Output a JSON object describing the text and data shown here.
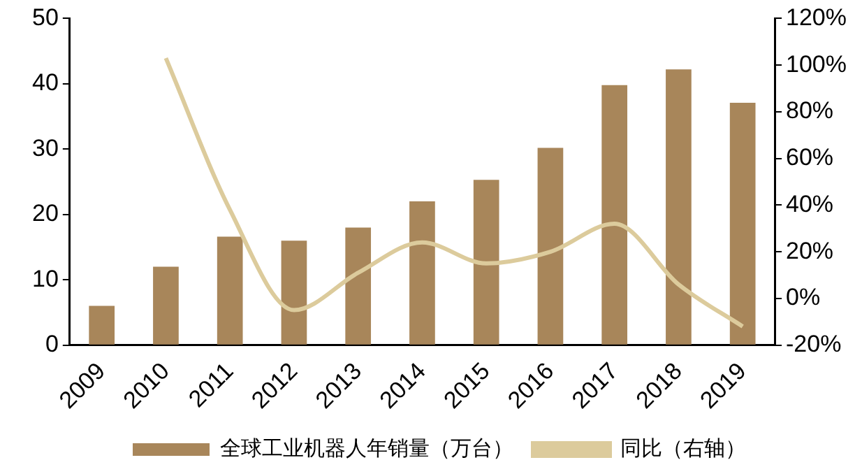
{
  "chart_data": {
    "type": "bar",
    "categories": [
      "2009",
      "2010",
      "2011",
      "2012",
      "2013",
      "2014",
      "2015",
      "2016",
      "2017",
      "2018",
      "2019"
    ],
    "series": [
      {
        "name": "全球工业机器人年销量（万台）",
        "color": "#a8865a",
        "values": [
          6,
          12,
          16.6,
          16,
          18,
          22,
          25.3,
          30.2,
          39.8,
          42.2,
          37.1
        ]
      },
      {
        "name": "同比（右轴）",
        "type": "line",
        "axis": "y2",
        "color": "#dccb9c",
        "values": [
          null,
          103,
          38,
          -5,
          11,
          24,
          15,
          20,
          32,
          6,
          -12
        ]
      }
    ],
    "ylim": [
      0,
      50
    ],
    "yticks": [
      0,
      10,
      20,
      30,
      40,
      50
    ],
    "y2lim": [
      -20,
      120
    ],
    "y2ticks": [
      {
        "value": -20,
        "label": "-20%"
      },
      {
        "value": 0,
        "label": "0%"
      },
      {
        "value": 20,
        "label": "20%"
      },
      {
        "value": 40,
        "label": "40%"
      },
      {
        "value": 60,
        "label": "60%"
      },
      {
        "value": 80,
        "label": "80%"
      },
      {
        "value": 100,
        "label": "100%"
      },
      {
        "value": 120,
        "label": "120%"
      }
    ],
    "grid": false,
    "legend": "bottom",
    "marker": "none"
  }
}
